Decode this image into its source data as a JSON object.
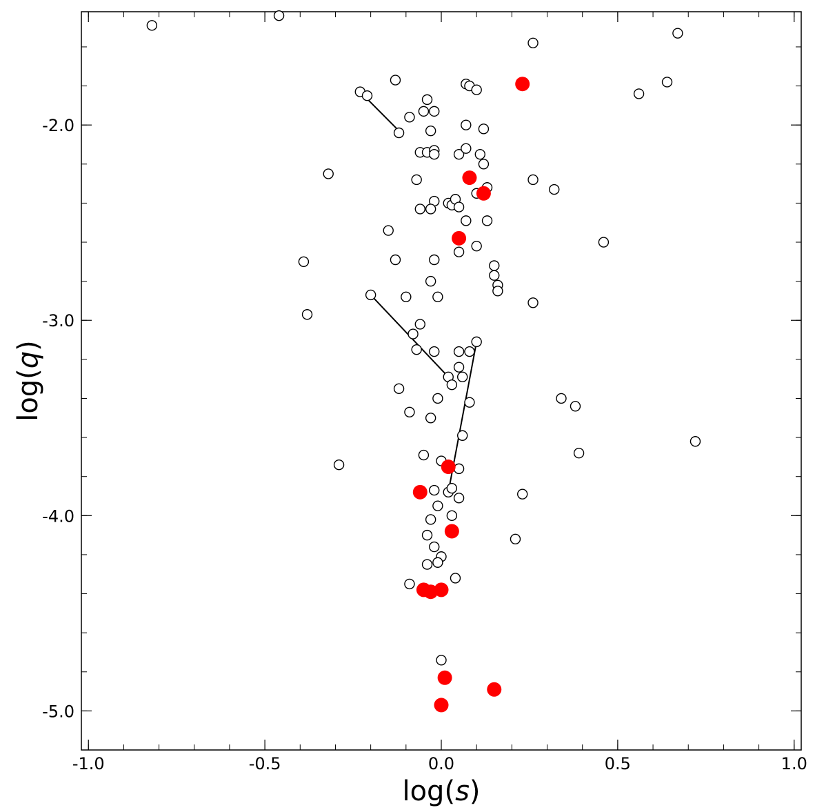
{
  "chart_data": {
    "type": "scatter",
    "title": "",
    "xlabel": {
      "prefix": "log(",
      "var": "s",
      "suffix": ")"
    },
    "ylabel": {
      "prefix": "log(",
      "var": "q",
      "suffix": ")"
    },
    "xlim": [
      -1.02,
      1.02
    ],
    "ylim": [
      -5.2,
      -1.42
    ],
    "x_ticks": [
      {
        "value": -1.0,
        "label": "-1.0"
      },
      {
        "value": -0.5,
        "label": "-0.5"
      },
      {
        "value": 0.0,
        "label": "0.0"
      },
      {
        "value": 0.5,
        "label": "0.5"
      },
      {
        "value": 1.0,
        "label": "1.0"
      }
    ],
    "y_ticks": [
      {
        "value": -2.0,
        "label": "-2.0"
      },
      {
        "value": -3.0,
        "label": "-3.0"
      },
      {
        "value": -4.0,
        "label": "-4.0"
      },
      {
        "value": -5.0,
        "label": "-5.0"
      }
    ],
    "x_minor_step": 0.1,
    "y_minor_step": 0.2,
    "grid": false,
    "colors": {
      "open_edge": "#000000",
      "open_fill": "#ffffff",
      "filled": "#ff0000",
      "line": "#000000"
    },
    "series": [
      {
        "style": "open-circle",
        "points": [
          [
            -0.82,
            -1.49
          ],
          [
            -0.46,
            -1.44
          ],
          [
            0.26,
            -1.58
          ],
          [
            0.67,
            -1.53
          ],
          [
            -0.13,
            -1.77
          ],
          [
            -0.23,
            -1.83
          ],
          [
            -0.21,
            -1.85
          ],
          [
            0.07,
            -1.79
          ],
          [
            0.08,
            -1.8
          ],
          [
            0.1,
            -1.82
          ],
          [
            0.56,
            -1.84
          ],
          [
            0.64,
            -1.78
          ],
          [
            -0.04,
            -1.87
          ],
          [
            -0.05,
            -1.93
          ],
          [
            -0.02,
            -1.93
          ],
          [
            -0.09,
            -1.96
          ],
          [
            -0.12,
            -2.04
          ],
          [
            -0.03,
            -2.03
          ],
          [
            0.07,
            -2.0
          ],
          [
            0.12,
            -2.02
          ],
          [
            -0.06,
            -2.14
          ],
          [
            -0.04,
            -2.14
          ],
          [
            -0.02,
            -2.13
          ],
          [
            -0.02,
            -2.15
          ],
          [
            0.05,
            -2.15
          ],
          [
            0.07,
            -2.12
          ],
          [
            0.11,
            -2.15
          ],
          [
            0.12,
            -2.2
          ],
          [
            -0.32,
            -2.25
          ],
          [
            -0.07,
            -2.28
          ],
          [
            0.26,
            -2.28
          ],
          [
            0.32,
            -2.33
          ],
          [
            0.13,
            -2.32
          ],
          [
            0.1,
            -2.35
          ],
          [
            -0.02,
            -2.39
          ],
          [
            0.02,
            -2.4
          ],
          [
            0.03,
            -2.41
          ],
          [
            0.04,
            -2.38
          ],
          [
            0.05,
            -2.42
          ],
          [
            -0.06,
            -2.43
          ],
          [
            -0.03,
            -2.43
          ],
          [
            0.07,
            -2.49
          ],
          [
            0.13,
            -2.49
          ],
          [
            -0.15,
            -2.54
          ],
          [
            0.46,
            -2.6
          ],
          [
            0.1,
            -2.62
          ],
          [
            -0.39,
            -2.7
          ],
          [
            -0.13,
            -2.69
          ],
          [
            -0.02,
            -2.69
          ],
          [
            0.05,
            -2.65
          ],
          [
            0.15,
            -2.72
          ],
          [
            0.15,
            -2.77
          ],
          [
            -0.03,
            -2.8
          ],
          [
            0.16,
            -2.82
          ],
          [
            0.16,
            -2.85
          ],
          [
            -0.38,
            -2.97
          ],
          [
            -0.2,
            -2.87
          ],
          [
            -0.1,
            -2.88
          ],
          [
            -0.01,
            -2.88
          ],
          [
            0.26,
            -2.91
          ],
          [
            -0.06,
            -3.02
          ],
          [
            -0.08,
            -3.07
          ],
          [
            -0.07,
            -3.15
          ],
          [
            -0.02,
            -3.16
          ],
          [
            0.05,
            -3.16
          ],
          [
            0.08,
            -3.16
          ],
          [
            0.1,
            -3.11
          ],
          [
            0.05,
            -3.24
          ],
          [
            0.02,
            -3.29
          ],
          [
            0.03,
            -3.33
          ],
          [
            0.06,
            -3.29
          ],
          [
            -0.12,
            -3.35
          ],
          [
            -0.01,
            -3.4
          ],
          [
            0.08,
            -3.42
          ],
          [
            0.34,
            -3.4
          ],
          [
            0.38,
            -3.44
          ],
          [
            -0.09,
            -3.47
          ],
          [
            -0.03,
            -3.5
          ],
          [
            0.06,
            -3.59
          ],
          [
            0.72,
            -3.62
          ],
          [
            0.39,
            -3.68
          ],
          [
            -0.29,
            -3.74
          ],
          [
            -0.05,
            -3.69
          ],
          [
            0.0,
            -3.72
          ],
          [
            0.05,
            -3.76
          ],
          [
            -0.02,
            -3.87
          ],
          [
            0.02,
            -3.88
          ],
          [
            0.03,
            -3.86
          ],
          [
            0.05,
            -3.91
          ],
          [
            0.23,
            -3.89
          ],
          [
            -0.01,
            -3.95
          ],
          [
            -0.03,
            -4.02
          ],
          [
            0.03,
            -4.0
          ],
          [
            -0.04,
            -4.1
          ],
          [
            -0.02,
            -4.16
          ],
          [
            0.21,
            -4.12
          ],
          [
            0.0,
            -4.21
          ],
          [
            -0.01,
            -4.24
          ],
          [
            -0.04,
            -4.25
          ],
          [
            0.04,
            -4.32
          ],
          [
            -0.09,
            -4.35
          ],
          [
            0.0,
            -4.74
          ]
        ]
      },
      {
        "style": "filled-circle",
        "points": [
          [
            0.23,
            -1.79
          ],
          [
            0.08,
            -2.27
          ],
          [
            0.12,
            -2.35
          ],
          [
            0.05,
            -2.58
          ],
          [
            0.02,
            -3.75
          ],
          [
            -0.06,
            -3.88
          ],
          [
            0.03,
            -4.08
          ],
          [
            -0.05,
            -4.38
          ],
          [
            -0.03,
            -4.39
          ],
          [
            0.0,
            -4.38
          ],
          [
            0.01,
            -4.83
          ],
          [
            0.15,
            -4.89
          ],
          [
            0.0,
            -4.97
          ]
        ]
      }
    ],
    "connectors": [
      [
        [
          -0.23,
          -1.83
        ],
        [
          -0.12,
          -2.03
        ]
      ],
      [
        [
          -0.2,
          -2.87
        ],
        [
          0.02,
          -3.29
        ]
      ],
      [
        [
          0.1,
          -3.11
        ],
        [
          0.02,
          -3.88
        ]
      ]
    ]
  }
}
